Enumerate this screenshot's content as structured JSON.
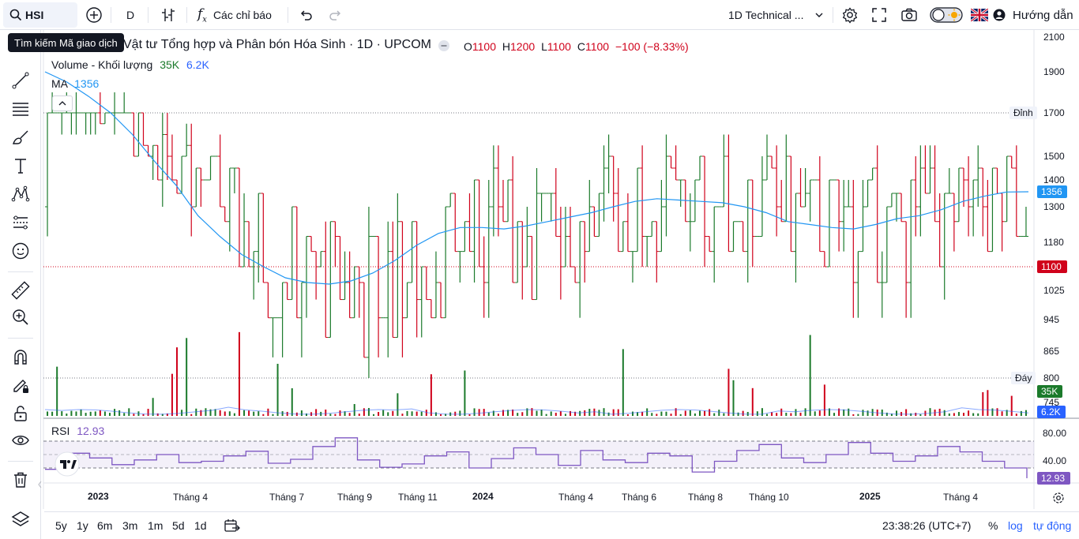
{
  "toolbar": {
    "symbol": "HSI",
    "interval": "D",
    "indicators_label": "Các chỉ báo",
    "layout_name": "1D Technical ...",
    "guide_label": "Hướng dẫn",
    "tooltip": "Tìm kiếm Mã giao dịch"
  },
  "legend": {
    "title": "Vật tư Tổng hợp và Phân bón Hóa Sinh · 1D · UPCOM",
    "o_label": "O",
    "o_value": "1100",
    "h_label": "H",
    "h_value": "1200",
    "l_label": "L",
    "l_value": "1100",
    "c_label": "C",
    "c_value": "1100",
    "change": "−100 (−8.33%)",
    "volume_label": "Volume - Khối lượng",
    "volume_value": "35K",
    "volume_ma_value": "6.2K",
    "ma_label": "MA",
    "ma_value": "1356",
    "rsi_label": "RSI",
    "rsi_value": "12.93"
  },
  "price_axis": {
    "ticks": [
      "2100",
      "1900",
      "1700",
      "1500",
      "1400",
      "1300",
      "1180",
      "1025",
      "945",
      "865",
      "800",
      "745"
    ],
    "peak_label": "Đỉnh",
    "peak_value": "1700",
    "bottom_label": "Đáy",
    "bottom_value": "800",
    "ma_badge": "1356",
    "last_badge": "1100",
    "vol_badge": "35K",
    "vol_ma_badge": "6.2K"
  },
  "rsi_axis": {
    "ticks": [
      "80.00",
      "40.00"
    ],
    "badge": "12.93"
  },
  "time_axis": [
    "2023",
    "Tháng 4",
    "Tháng 7",
    "Tháng 9",
    "Tháng 11",
    "2024",
    "Tháng 4",
    "Tháng 6",
    "Tháng 8",
    "Tháng 10",
    "2025",
    "Tháng 4"
  ],
  "bottom": {
    "ranges": [
      "5y",
      "1y",
      "6m",
      "3m",
      "1m",
      "5d",
      "1d"
    ],
    "time": "23:38:26 (UTC+7)",
    "percent": "%",
    "log": "log",
    "auto": "tự động"
  },
  "colors": {
    "up": "#1b7a2b",
    "down": "#d0021b",
    "ma": "#2196f3",
    "rsi": "#7e57c2",
    "accent": "#2962ff"
  },
  "chart_data": {
    "type": "line",
    "series": [
      {
        "name": "MA",
        "values": [
          1900,
          1850,
          1780,
          1700,
          1600,
          1480,
          1380,
          1270,
          1200,
          1140,
          1100,
          1065,
          1050,
          1045,
          1055,
          1080,
          1120,
          1170,
          1210,
          1230,
          1230,
          1225,
          1235,
          1250,
          1265,
          1280,
          1300,
          1320,
          1330,
          1325,
          1320,
          1315,
          1300,
          1280,
          1250,
          1240,
          1230,
          1225,
          1240,
          1260,
          1270,
          1290,
          1320,
          1340,
          1355,
          1356
        ]
      },
      {
        "name": "RSI",
        "values": [
          38,
          62,
          55,
          45,
          52,
          60,
          48,
          50,
          58,
          65,
          47,
          53,
          72,
          85,
          52,
          41,
          46,
          58,
          64,
          40,
          54,
          70,
          60,
          44,
          66,
          52,
          48,
          62,
          58,
          34,
          50,
          66,
          75,
          55,
          48,
          60,
          78,
          62,
          50,
          58,
          72,
          64,
          50,
          40,
          13
        ]
      }
    ],
    "ylim": [
      700,
      2100
    ]
  }
}
